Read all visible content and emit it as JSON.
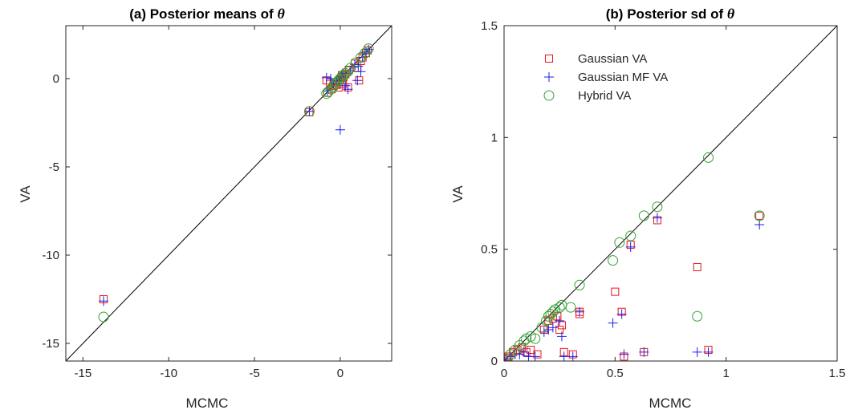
{
  "chart_data": [
    {
      "type": "scatter",
      "title_prefix": "(a) Posterior means of ",
      "title_symbol": "θ",
      "xlabel": "MCMC",
      "ylabel": "VA",
      "xlim": [
        -16,
        3
      ],
      "ylim": [
        -16,
        3
      ],
      "xticks": [
        -15,
        -10,
        -5,
        0
      ],
      "yticks": [
        -15,
        -10,
        -5,
        0
      ],
      "reference_line": "y = x",
      "grid": false,
      "series": [
        {
          "name": "Gaussian VA",
          "marker": "square",
          "color": "#e8151b",
          "points": [
            [
              -13.8,
              -12.5
            ],
            [
              -1.8,
              -1.9
            ],
            [
              -0.8,
              -0.1
            ],
            [
              -0.75,
              -0.8
            ],
            [
              -0.6,
              -0.3
            ],
            [
              -0.5,
              -0.6
            ],
            [
              -0.4,
              -0.4
            ],
            [
              -0.3,
              -0.2
            ],
            [
              -0.2,
              -0.35
            ],
            [
              -0.1,
              -0.5
            ],
            [
              0.0,
              -0.1
            ],
            [
              0.05,
              0.05
            ],
            [
              0.1,
              0.2
            ],
            [
              0.15,
              -0.3
            ],
            [
              0.2,
              0.1
            ],
            [
              0.3,
              0.25
            ],
            [
              0.45,
              -0.5
            ],
            [
              0.5,
              0.5
            ],
            [
              0.85,
              0.85
            ],
            [
              1.0,
              0.6
            ],
            [
              1.1,
              -0.1
            ],
            [
              1.2,
              1.0
            ],
            [
              1.3,
              1.2
            ],
            [
              1.5,
              1.45
            ],
            [
              1.6,
              1.6
            ]
          ]
        },
        {
          "name": "Gaussian MF VA",
          "marker": "plus",
          "color": "#1c1cf0",
          "points": [
            [
              -13.8,
              -12.6
            ],
            [
              -1.8,
              -1.85
            ],
            [
              -0.8,
              0.05
            ],
            [
              -0.75,
              -0.7
            ],
            [
              -0.55,
              0.0
            ],
            [
              -0.4,
              -0.3
            ],
            [
              -0.2,
              -0.1
            ],
            [
              0.0,
              -2.9
            ],
            [
              0.05,
              0.1
            ],
            [
              0.15,
              0.3
            ],
            [
              0.3,
              -0.4
            ],
            [
              0.45,
              -0.6
            ],
            [
              0.6,
              0.45
            ],
            [
              0.85,
              0.8
            ],
            [
              1.0,
              -0.1
            ],
            [
              1.05,
              0.7
            ],
            [
              1.2,
              0.4
            ],
            [
              1.3,
              1.2
            ],
            [
              1.5,
              1.5
            ],
            [
              1.65,
              1.65
            ]
          ]
        },
        {
          "name": "Hybrid VA",
          "marker": "circle",
          "color": "#36a036",
          "points": [
            [
              -13.8,
              -13.5
            ],
            [
              -1.8,
              -1.85
            ],
            [
              -0.8,
              -0.85
            ],
            [
              -0.7,
              -0.75
            ],
            [
              -0.55,
              -0.6
            ],
            [
              -0.4,
              -0.45
            ],
            [
              -0.3,
              -0.3
            ],
            [
              -0.2,
              -0.2
            ],
            [
              -0.1,
              -0.1
            ],
            [
              0.0,
              0.0
            ],
            [
              0.1,
              0.1
            ],
            [
              0.2,
              0.2
            ],
            [
              0.3,
              0.3
            ],
            [
              0.45,
              0.4
            ],
            [
              0.6,
              0.6
            ],
            [
              0.9,
              0.9
            ],
            [
              1.2,
              1.2
            ],
            [
              1.45,
              1.45
            ],
            [
              1.65,
              1.7
            ]
          ]
        }
      ]
    },
    {
      "type": "scatter",
      "title_prefix": "(b) Posterior sd of ",
      "title_symbol": "θ",
      "xlabel": "MCMC",
      "ylabel": "VA",
      "xlim": [
        0,
        1.5
      ],
      "ylim": [
        0,
        1.5
      ],
      "xticks": [
        0,
        0.5,
        1,
        1.5
      ],
      "yticks": [
        0,
        0.5,
        1,
        1.5
      ],
      "reference_line": "y = x",
      "grid": false,
      "legend_position": "top-left",
      "series": [
        {
          "name": "Gaussian VA",
          "marker": "square",
          "color": "#e8151b",
          "points": [
            [
              0.01,
              0.01
            ],
            [
              0.02,
              0.02
            ],
            [
              0.04,
              0.04
            ],
            [
              0.06,
              0.05
            ],
            [
              0.08,
              0.06
            ],
            [
              0.1,
              0.04
            ],
            [
              0.12,
              0.05
            ],
            [
              0.15,
              0.03
            ],
            [
              0.18,
              0.14
            ],
            [
              0.2,
              0.18
            ],
            [
              0.22,
              0.19
            ],
            [
              0.24,
              0.2
            ],
            [
              0.25,
              0.14
            ],
            [
              0.26,
              0.16
            ],
            [
              0.27,
              0.04
            ],
            [
              0.31,
              0.03
            ],
            [
              0.34,
              0.21
            ],
            [
              0.34,
              0.22
            ],
            [
              0.5,
              0.31
            ],
            [
              0.53,
              0.22
            ],
            [
              0.54,
              0.02
            ],
            [
              0.57,
              0.52
            ],
            [
              0.63,
              0.04
            ],
            [
              0.69,
              0.63
            ],
            [
              0.87,
              0.42
            ],
            [
              0.92,
              0.05
            ],
            [
              1.15,
              0.65
            ]
          ]
        },
        {
          "name": "Gaussian MF VA",
          "marker": "plus",
          "color": "#1c1cf0",
          "points": [
            [
              0.01,
              0.01
            ],
            [
              0.03,
              0.02
            ],
            [
              0.05,
              0.03
            ],
            [
              0.07,
              0.03
            ],
            [
              0.09,
              0.04
            ],
            [
              0.11,
              0.02
            ],
            [
              0.14,
              0.02
            ],
            [
              0.18,
              0.13
            ],
            [
              0.2,
              0.14
            ],
            [
              0.22,
              0.15
            ],
            [
              0.25,
              0.18
            ],
            [
              0.26,
              0.11
            ],
            [
              0.27,
              0.02
            ],
            [
              0.31,
              0.02
            ],
            [
              0.34,
              0.22
            ],
            [
              0.49,
              0.17
            ],
            [
              0.53,
              0.21
            ],
            [
              0.54,
              0.03
            ],
            [
              0.57,
              0.51
            ],
            [
              0.63,
              0.04
            ],
            [
              0.69,
              0.64
            ],
            [
              0.87,
              0.04
            ],
            [
              0.92,
              0.04
            ],
            [
              1.15,
              0.61
            ]
          ]
        },
        {
          "name": "Hybrid VA",
          "marker": "circle",
          "color": "#36a036",
          "points": [
            [
              0.01,
              0.01
            ],
            [
              0.03,
              0.03
            ],
            [
              0.05,
              0.05
            ],
            [
              0.07,
              0.07
            ],
            [
              0.09,
              0.09
            ],
            [
              0.1,
              0.1
            ],
            [
              0.12,
              0.11
            ],
            [
              0.14,
              0.1
            ],
            [
              0.17,
              0.15
            ],
            [
              0.19,
              0.18
            ],
            [
              0.2,
              0.2
            ],
            [
              0.21,
              0.21
            ],
            [
              0.22,
              0.22
            ],
            [
              0.23,
              0.23
            ],
            [
              0.25,
              0.24
            ],
            [
              0.26,
              0.25
            ],
            [
              0.3,
              0.24
            ],
            [
              0.34,
              0.34
            ],
            [
              0.49,
              0.45
            ],
            [
              0.52,
              0.53
            ],
            [
              0.57,
              0.56
            ],
            [
              0.63,
              0.65
            ],
            [
              0.69,
              0.69
            ],
            [
              0.87,
              0.2
            ],
            [
              0.92,
              0.91
            ],
            [
              1.15,
              0.65
            ]
          ]
        }
      ]
    }
  ]
}
